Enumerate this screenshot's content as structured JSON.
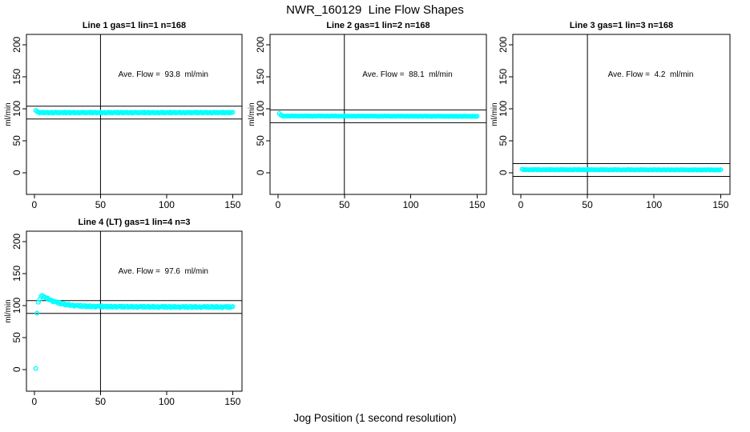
{
  "page": {
    "main_title": "NWR_160129  Line Flow Shapes",
    "x_axis_label": "Jog Position (1 second resolution)",
    "background_color": "#ffffff",
    "point_color": "#00ffff",
    "line_color": "#000000",
    "marker_shape": "open-circle"
  },
  "axes": {
    "x_domain": [
      -6,
      157
    ],
    "y_domain": [
      -34,
      216
    ],
    "x_ticks": [
      0,
      50,
      100,
      150
    ],
    "y_ticks": [
      0,
      50,
      100,
      150,
      200
    ],
    "y_label": "ml/min"
  },
  "chart_data": [
    {
      "type": "scatter",
      "id": "line-1",
      "title": "Line 1 gas=1 lin=1 n=168",
      "annotation": "Ave. Flow =  93.8  ml/min",
      "ave_flow_ml_min": 93.8,
      "gas": 1,
      "lin": 1,
      "n": 168,
      "vline_x": 50,
      "hlines": [
        103.8,
        83.8
      ],
      "points": {
        "x_start": 1,
        "x_end": 150,
        "step": 1,
        "anchors": [
          [
            1,
            93.8
          ],
          [
            150,
            93.8
          ]
        ],
        "jitter_pattern": [
          0.5,
          -0.4,
          0.8,
          -0.7,
          0.2,
          0.6,
          -0.6,
          0.3,
          -0.2,
          0.7,
          -0.5,
          0.0,
          0.4,
          -0.8,
          0.1,
          0.6,
          -0.3,
          0.5,
          -0.6,
          0.2
        ],
        "overrides": [
          [
            1,
            97.2
          ],
          [
            2,
            95.4
          ],
          [
            3,
            94.7
          ]
        ]
      }
    },
    {
      "type": "scatter",
      "id": "line-2",
      "title": "Line 2 gas=1 lin=2 n=168",
      "annotation": "Ave. Flow =  88.1  ml/min",
      "ave_flow_ml_min": 88.1,
      "gas": 1,
      "lin": 2,
      "n": 168,
      "vline_x": 50,
      "hlines": [
        98.1,
        78.1
      ],
      "points": {
        "x_start": 1,
        "x_end": 150,
        "step": 1,
        "anchors": [
          [
            1,
            88.4
          ],
          [
            150,
            88.0
          ]
        ],
        "jitter_pattern": [
          0.25,
          -0.2,
          0.3,
          -0.15,
          0.1,
          -0.3,
          0.2,
          0.0,
          -0.25,
          0.3
        ],
        "overrides": [
          [
            1,
            92.6
          ],
          [
            2,
            90.2
          ],
          [
            3,
            89.1
          ]
        ]
      }
    },
    {
      "type": "scatter",
      "id": "line-3",
      "title": "Line 3 gas=1 lin=3 n=168",
      "annotation": "Ave. Flow =  4.2  ml/min",
      "ave_flow_ml_min": 4.2,
      "gas": 1,
      "lin": 3,
      "n": 168,
      "vline_x": 50,
      "hlines": [
        14.2,
        -5.8
      ],
      "points": {
        "x_start": 1,
        "x_end": 150,
        "step": 1,
        "anchors": [
          [
            1,
            4.6
          ],
          [
            150,
            4.3
          ]
        ],
        "jitter_pattern": [
          0.25,
          -0.2,
          0.3,
          -0.15,
          0.1,
          -0.3,
          0.2,
          0.0,
          -0.25,
          0.3
        ],
        "overrides": [
          [
            1,
            5.4
          ]
        ]
      }
    },
    {
      "type": "scatter",
      "id": "line-4",
      "title": "Line 4 (LT) gas=1 lin=4 n=3",
      "annotation": "Ave. Flow =  97.6  ml/min",
      "ave_flow_ml_min": 97.6,
      "gas": 1,
      "lin": 4,
      "n": 3,
      "vline_x": 50,
      "hlines": [
        107.6,
        87.6
      ],
      "points": {
        "x_start": 1,
        "x_end": 150,
        "step": 1,
        "anchors": [
          [
            3,
            104
          ],
          [
            4,
            110
          ],
          [
            5,
            114
          ],
          [
            6,
            115
          ],
          [
            7,
            114
          ],
          [
            9,
            111.5
          ],
          [
            12,
            108.5
          ],
          [
            15,
            106
          ],
          [
            19,
            103.5
          ],
          [
            24,
            101.2
          ],
          [
            30,
            99.8
          ],
          [
            38,
            98.8
          ],
          [
            48,
            98.3
          ],
          [
            60,
            98.0
          ],
          [
            80,
            97.8
          ],
          [
            110,
            97.6
          ],
          [
            150,
            97.5
          ]
        ],
        "jitter_pattern": [
          0.8,
          -0.7,
          1.1,
          -0.9,
          0.3,
          0.9,
          -1.0,
          0.5,
          -0.4,
          1.0,
          -0.8,
          0.1,
          0.7,
          -1.1,
          0.2,
          0.6
        ],
        "overrides": [
          [
            1,
            1.5
          ],
          [
            2,
            88
          ]
        ]
      }
    }
  ]
}
